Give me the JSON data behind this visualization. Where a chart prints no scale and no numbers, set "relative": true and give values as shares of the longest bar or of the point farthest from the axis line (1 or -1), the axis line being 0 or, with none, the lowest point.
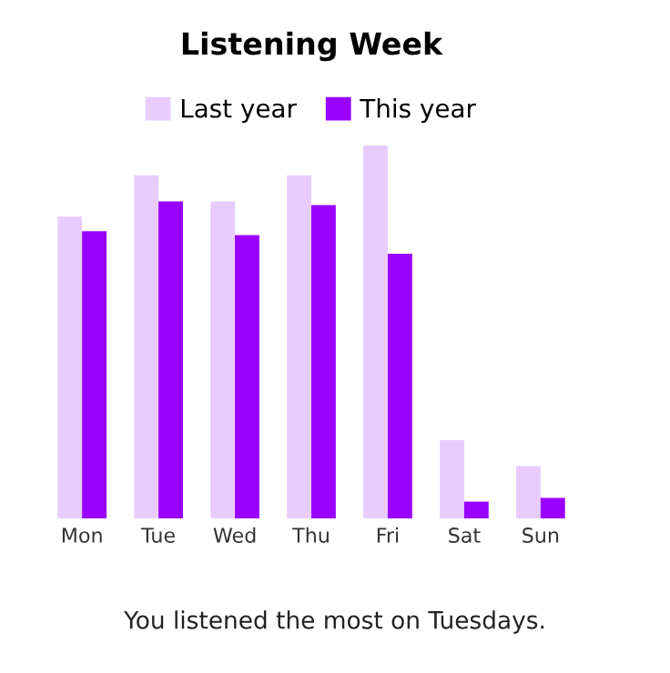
{
  "chart_data": {
    "type": "bar",
    "title": "Listening Week",
    "relative": true,
    "categories": [
      "Mon",
      "Tue",
      "Wed",
      "Thu",
      "Fri",
      "Sat",
      "Sun"
    ],
    "series": [
      {
        "name": "Last year",
        "color": "#e8ccff",
        "values": [
          0.81,
          0.92,
          0.85,
          0.92,
          1,
          0.21,
          0.14
        ]
      },
      {
        "name": "This year",
        "color": "#9900ff",
        "values": [
          0.77,
          0.85,
          0.76,
          0.84,
          0.71,
          0.045,
          0.055
        ]
      }
    ],
    "legend": "top",
    "grid": false,
    "annotations": [
      "You listened the most on Tuesdays."
    ]
  }
}
